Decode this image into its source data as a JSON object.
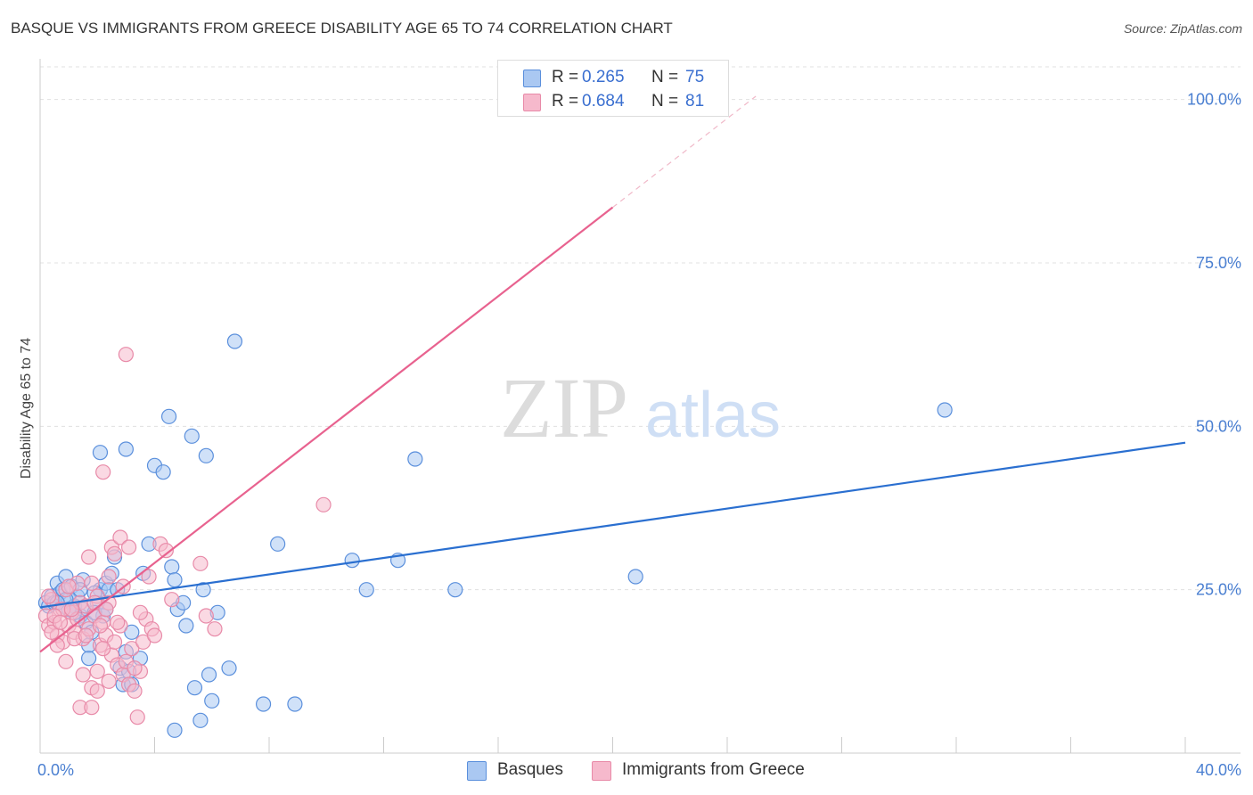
{
  "title": "BASQUE VS IMMIGRANTS FROM GREECE DISABILITY AGE 65 TO 74 CORRELATION CHART",
  "source": "Source: ZipAtlas.com",
  "watermark": {
    "zip": "ZIP",
    "atlas": "atlas"
  },
  "legend_top": [
    {
      "r_label": "R = ",
      "r_value": "0.265",
      "n_label": "N = ",
      "n_value": "75"
    },
    {
      "r_label": "R = ",
      "r_value": "0.684",
      "n_label": "N = ",
      "n_value": "81"
    }
  ],
  "legend_bottom": [
    "Basques",
    "Immigrants from Greece"
  ],
  "colors": {
    "basques_fill": "#aac8f2",
    "basques_stroke": "#5a8fdc",
    "basques_line": "#2a6fd0",
    "greece_fill": "#f6b9cc",
    "greece_stroke": "#e88aa8",
    "greece_line": "#e8628f",
    "tick_text": "#4a7fd1",
    "grid": "#e0e0e0"
  },
  "chart_data": {
    "type": "scatter",
    "title": "BASQUE VS IMMIGRANTS FROM GREECE DISABILITY AGE 65 TO 74 CORRELATION CHART",
    "xlabel": "",
    "ylabel": "Disability Age 65 to 74",
    "xlim": [
      0,
      40
    ],
    "ylim": [
      0,
      105
    ],
    "x_tick_labels": [
      {
        "value": 0,
        "label": "0.0%"
      },
      {
        "value": 40,
        "label": "40.0%"
      }
    ],
    "y_tick_labels": [
      {
        "value": 25,
        "label": "25.0%"
      },
      {
        "value": 50,
        "label": "50.0%"
      },
      {
        "value": 75,
        "label": "75.0%"
      },
      {
        "value": 100,
        "label": "100.0%"
      }
    ],
    "series": [
      {
        "name": "Basques",
        "r": 0.265,
        "n": 75,
        "trend": {
          "x": [
            0,
            40
          ],
          "y": [
            22.3,
            47.5
          ]
        },
        "points": [
          [
            0.2,
            23
          ],
          [
            0.3,
            22.5
          ],
          [
            0.4,
            24
          ],
          [
            0.5,
            23
          ],
          [
            0.6,
            26
          ],
          [
            0.7,
            24.5
          ],
          [
            0.8,
            25
          ],
          [
            0.9,
            27
          ],
          [
            1.0,
            23.5
          ],
          [
            1.1,
            25.5
          ],
          [
            1.2,
            22.5
          ],
          [
            1.3,
            24
          ],
          [
            1.4,
            21
          ],
          [
            1.5,
            26.5
          ],
          [
            1.6,
            20
          ],
          [
            1.7,
            16.5
          ],
          [
            1.8,
            18.5
          ],
          [
            2.0,
            23
          ],
          [
            2.1,
            25
          ],
          [
            2.2,
            21
          ],
          [
            2.3,
            26
          ],
          [
            2.4,
            25
          ],
          [
            2.5,
            27.5
          ],
          [
            2.6,
            30
          ],
          [
            2.7,
            25
          ],
          [
            2.8,
            13
          ],
          [
            2.9,
            10.5
          ],
          [
            3.0,
            15.5
          ],
          [
            3.1,
            12.5
          ],
          [
            3.2,
            18.5
          ],
          [
            3.5,
            14.5
          ],
          [
            3.6,
            27.5
          ],
          [
            3.8,
            32
          ],
          [
            4.0,
            44
          ],
          [
            4.3,
            43
          ],
          [
            4.5,
            51.5
          ],
          [
            4.6,
            28.5
          ],
          [
            4.7,
            26.5
          ],
          [
            4.8,
            22
          ],
          [
            5.0,
            23
          ],
          [
            5.1,
            19.5
          ],
          [
            5.3,
            48.5
          ],
          [
            5.4,
            10
          ],
          [
            5.6,
            5
          ],
          [
            5.7,
            25
          ],
          [
            5.8,
            45.5
          ],
          [
            5.9,
            12
          ],
          [
            6.0,
            8
          ],
          [
            6.2,
            21.5
          ],
          [
            6.6,
            13
          ],
          [
            6.8,
            63
          ],
          [
            7.8,
            7.5
          ],
          [
            8.3,
            32
          ],
          [
            8.9,
            7.5
          ],
          [
            10.9,
            29.5
          ],
          [
            11.4,
            25
          ],
          [
            12.5,
            29.5
          ],
          [
            13.1,
            45
          ],
          [
            14.5,
            25
          ],
          [
            20.8,
            27
          ],
          [
            31.6,
            52.5
          ],
          [
            2.1,
            46
          ],
          [
            3.0,
            46.5
          ],
          [
            1.5,
            22
          ],
          [
            1.9,
            21.5
          ],
          [
            0.9,
            23.5
          ],
          [
            1.2,
            21.5
          ],
          [
            1.7,
            14.5
          ],
          [
            2.3,
            22
          ],
          [
            3.2,
            10.5
          ],
          [
            4.7,
            3.5
          ],
          [
            1.4,
            25
          ],
          [
            1.0,
            22
          ],
          [
            0.6,
            23
          ],
          [
            1.9,
            24.5
          ]
        ]
      },
      {
        "name": "Immigrants from Greece",
        "r": 0.684,
        "n": 81,
        "trend": {
          "x": [
            0,
            20
          ],
          "y": [
            15.5,
            83.5
          ]
        },
        "trend_dashed": {
          "x": [
            20,
            25
          ],
          "y": [
            83.5,
            100.5
          ]
        },
        "points": [
          [
            0.2,
            21
          ],
          [
            0.3,
            19.5
          ],
          [
            0.4,
            23.5
          ],
          [
            0.5,
            20
          ],
          [
            0.6,
            18
          ],
          [
            0.7,
            22
          ],
          [
            0.8,
            17
          ],
          [
            0.9,
            25
          ],
          [
            1.0,
            19.5
          ],
          [
            1.1,
            21.5
          ],
          [
            1.2,
            18.5
          ],
          [
            1.3,
            20.5
          ],
          [
            1.4,
            23
          ],
          [
            1.5,
            17.5
          ],
          [
            1.6,
            22.5
          ],
          [
            1.7,
            19
          ],
          [
            1.8,
            26
          ],
          [
            1.9,
            21
          ],
          [
            2.0,
            24
          ],
          [
            2.1,
            16.5
          ],
          [
            2.2,
            20
          ],
          [
            2.3,
            18
          ],
          [
            2.4,
            23
          ],
          [
            2.5,
            15
          ],
          [
            2.6,
            17
          ],
          [
            2.7,
            13.5
          ],
          [
            2.8,
            19.5
          ],
          [
            2.9,
            12
          ],
          [
            3.0,
            14
          ],
          [
            3.1,
            10.5
          ],
          [
            3.2,
            16
          ],
          [
            3.3,
            9.5
          ],
          [
            3.4,
            5.5
          ],
          [
            3.5,
            12.5
          ],
          [
            3.6,
            17
          ],
          [
            3.7,
            20.5
          ],
          [
            3.8,
            27
          ],
          [
            3.9,
            19
          ],
          [
            4.0,
            18
          ],
          [
            4.2,
            32
          ],
          [
            4.4,
            31
          ],
          [
            4.6,
            23.5
          ],
          [
            5.6,
            29
          ],
          [
            5.8,
            21
          ],
          [
            6.1,
            19
          ],
          [
            9.9,
            38
          ],
          [
            3.0,
            61
          ],
          [
            2.2,
            43
          ],
          [
            2.5,
            31.5
          ],
          [
            2.8,
            33
          ],
          [
            3.1,
            31.5
          ],
          [
            2.6,
            30.5
          ],
          [
            1.7,
            30
          ],
          [
            2.4,
            27
          ],
          [
            1.3,
            26
          ],
          [
            1.0,
            25.5
          ],
          [
            0.8,
            22
          ],
          [
            0.5,
            21
          ],
          [
            0.4,
            18.5
          ],
          [
            0.6,
            16.5
          ],
          [
            0.9,
            14
          ],
          [
            1.2,
            17.5
          ],
          [
            1.5,
            12
          ],
          [
            1.8,
            10
          ],
          [
            2.0,
            12.5
          ],
          [
            2.2,
            16
          ],
          [
            2.4,
            11
          ],
          [
            2.7,
            20
          ],
          [
            3.3,
            13
          ],
          [
            1.4,
            7
          ],
          [
            1.8,
            7
          ],
          [
            2.0,
            9.5
          ],
          [
            1.6,
            18
          ],
          [
            1.1,
            22
          ],
          [
            0.3,
            24
          ],
          [
            0.7,
            20
          ],
          [
            1.9,
            23
          ],
          [
            2.3,
            22
          ],
          [
            2.9,
            25.5
          ],
          [
            3.5,
            21.5
          ],
          [
            2.1,
            19.5
          ]
        ]
      }
    ]
  }
}
